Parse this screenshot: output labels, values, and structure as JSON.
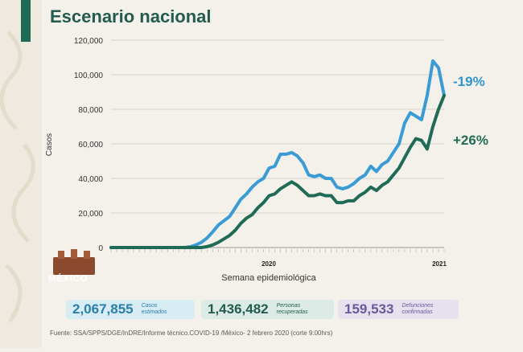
{
  "header": {
    "title": "Escenario nacional"
  },
  "logo": {
    "text": "MÉXICO"
  },
  "chart_data": {
    "type": "line",
    "title": "",
    "xlabel": "Semana epidemiológica",
    "ylabel": "Casos",
    "ylim": [
      0,
      120000
    ],
    "yticks": [
      "0",
      "20,000",
      "40,000",
      "60,000",
      "80,000",
      "100,000",
      "120,000"
    ],
    "year_labels": [
      "2020",
      "2021"
    ],
    "grid": "horizontal",
    "colors": {
      "estimados": "#3a9bd5",
      "confirmados": "#1f6b56"
    },
    "series": [
      {
        "key": "estimados",
        "values": [
          0,
          0,
          0,
          0,
          0,
          0,
          0,
          0,
          0,
          0,
          0,
          0,
          0,
          0,
          400,
          1500,
          3000,
          5500,
          9000,
          13000,
          15500,
          18000,
          23000,
          28000,
          31000,
          35000,
          38000,
          40000,
          46000,
          47000,
          54000,
          54000,
          55000,
          53000,
          49000,
          42000,
          41000,
          42000,
          40000,
          40000,
          35000,
          34000,
          35000,
          37000,
          40000,
          42000,
          47000,
          44000,
          48000,
          50000,
          55000,
          60000,
          72000,
          78000,
          76000,
          74000,
          88000,
          108000,
          104000,
          88000
        ]
      },
      {
        "key": "confirmados",
        "values": [
          0,
          0,
          0,
          0,
          0,
          0,
          0,
          0,
          0,
          0,
          0,
          0,
          0,
          0,
          0,
          0,
          0,
          500,
          1500,
          3000,
          5000,
          7000,
          10000,
          14000,
          17000,
          19000,
          23000,
          26000,
          30000,
          31000,
          34000,
          36000,
          38000,
          36000,
          33000,
          30000,
          30000,
          31000,
          30000,
          30000,
          26000,
          26000,
          27000,
          27000,
          30000,
          32000,
          35000,
          33000,
          36000,
          38000,
          42000,
          46000,
          52000,
          58000,
          63000,
          62000,
          57000,
          70000,
          80000,
          88000
        ]
      }
    ],
    "annotations": [
      {
        "text": "-19%",
        "series": "estimados"
      },
      {
        "text": "+26%",
        "series": "confirmados"
      }
    ]
  },
  "stats": [
    {
      "value": "2,067,855",
      "label": "Casos\nestimados"
    },
    {
      "value": "1,436,482",
      "label": "Personas\nrecuperadas"
    },
    {
      "value": "159,533",
      "label": "Defunciones\nconfirmadas"
    }
  ],
  "footer": {
    "source": "Fuente: SSA/SPPS/DGE/InDRE/Informe técnico.COVID-19 /México- 2 febrero 2020 (corte 9:00hrs)"
  }
}
